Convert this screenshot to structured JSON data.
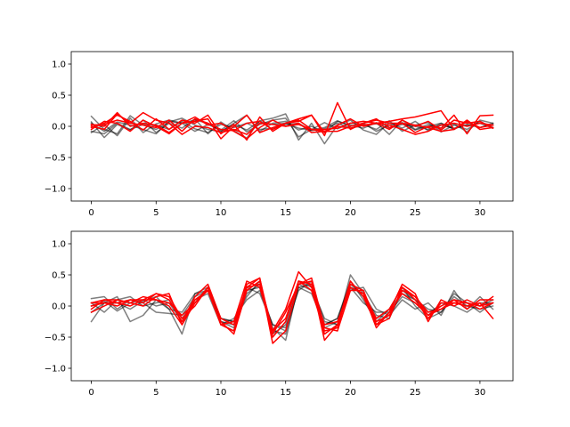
{
  "chart_data": [
    {
      "type": "line",
      "title": "",
      "xlabel": "",
      "ylabel": "",
      "xlim": [
        -1.55,
        32.55
      ],
      "ylim": [
        -1.2,
        1.2
      ],
      "xticks": [
        0,
        5,
        10,
        15,
        20,
        25,
        30
      ],
      "xtick_labels": [
        "0",
        "5",
        "10",
        "15",
        "20",
        "25",
        "30"
      ],
      "yticks": [
        1.0,
        0.5,
        0.0,
        -0.5,
        -1.0
      ],
      "ytick_labels": [
        "1.0",
        "0.5",
        "0.0",
        "−0.5",
        "−1.0"
      ],
      "grid": false,
      "legend": "none",
      "x": [
        0,
        1,
        2,
        3,
        4,
        5,
        6,
        7,
        8,
        9,
        10,
        11,
        12,
        13,
        14,
        15,
        16,
        17,
        18,
        19,
        20,
        21,
        22,
        23,
        24,
        25,
        26,
        27,
        28,
        29,
        30,
        31
      ],
      "series": [
        {
          "color": "#000000",
          "alpha": 0.5,
          "values": [
            0.16,
            -0.05,
            -0.12,
            0.17,
            0.02,
            -0.05,
            0.07,
            0.13,
            0.02,
            -0.05,
            -0.09,
            0.05,
            0.18,
            -0.08,
            0.05,
            0.08,
            -0.06,
            0.0,
            -0.1,
            0.08,
            0.02,
            -0.03,
            0.06,
            -0.13,
            0.1,
            -0.05,
            0.03,
            -0.03,
            0.04,
            -0.09,
            0.1,
            0.05
          ]
        },
        {
          "color": "#000000",
          "alpha": 0.5,
          "values": [
            0.07,
            -0.18,
            0.03,
            -0.06,
            0.1,
            -0.1,
            0.05,
            -0.03,
            0.12,
            -0.12,
            0.07,
            -0.07,
            -0.19,
            0.09,
            0.13,
            0.2,
            -0.22,
            0.05,
            -0.28,
            0.02,
            0.1,
            -0.06,
            -0.13,
            0.06,
            -0.03,
            0.08,
            -0.07,
            0.05,
            -0.05,
            0.07,
            -0.02,
            0.03
          ]
        },
        {
          "color": "#000000",
          "alpha": 0.5,
          "values": [
            -0.1,
            0.03,
            -0.15,
            0.13,
            -0.1,
            0.04,
            0.1,
            0.05,
            -0.08,
            0.03,
            -0.06,
            0.09,
            -0.09,
            0.03,
            0.1,
            0.13,
            -0.17,
            -0.05,
            0.06,
            -0.04,
            0.05,
            0.03,
            -0.05,
            0.09,
            -0.08,
            0.02,
            0.06,
            -0.09,
            0.02,
            -0.05,
            0.08,
            -0.02
          ]
        },
        {
          "color": "#000000",
          "alpha": 0.5,
          "values": [
            0.05,
            -0.08,
            0.07,
            0.02,
            -0.05,
            -0.12,
            0.08,
            0.05,
            0.1,
            0.05,
            -0.08,
            0.03,
            -0.06,
            0.08,
            0.03,
            0.05,
            -0.03,
            -0.06,
            -0.02,
            0.09,
            0.0,
            0.05,
            -0.08,
            0.02,
            0.06,
            -0.06,
            0.0,
            0.05,
            -0.04,
            0.03,
            -0.02,
            0.05
          ]
        },
        {
          "color": "#000000",
          "alpha": 0.5,
          "values": [
            -0.08,
            -0.12,
            0.05,
            -0.05,
            0.03,
            0.02,
            -0.05,
            0.08,
            -0.04,
            -0.1,
            0.03,
            -0.02,
            0.05,
            -0.05,
            -0.03,
            0.03,
            0.05,
            -0.07,
            -0.04,
            0.05,
            -0.03,
            0.02,
            0.04,
            -0.03,
            0.03,
            0.0,
            -0.05,
            0.02,
            -0.03,
            0.02,
            0.05,
            -0.03
          ]
        },
        {
          "color": "#ff0000",
          "alpha": 1.0,
          "values": [
            0.03,
            0.0,
            0.22,
            0.0,
            0.05,
            0.02,
            -0.1,
            0.05,
            0.08,
            0.12,
            -0.2,
            0.0,
            0.18,
            -0.1,
            -0.02,
            0.05,
            0.12,
            0.18,
            -0.15,
            0.38,
            -0.05,
            0.05,
            0.1,
            0.05,
            0.05,
            -0.1,
            0.0,
            -0.03,
            0.18,
            -0.12,
            0.17,
            0.18
          ]
        },
        {
          "color": "#ff0000",
          "alpha": 1.0,
          "values": [
            -0.02,
            0.05,
            0.18,
            0.08,
            -0.06,
            0.12,
            -0.05,
            0.1,
            0.05,
            0.18,
            -0.12,
            0.03,
            -0.22,
            0.15,
            -0.08,
            0.05,
            0.08,
            0.18,
            -0.1,
            0.02,
            0.12,
            0.0,
            0.05,
            0.08,
            0.12,
            0.15,
            0.2,
            0.25,
            -0.05,
            0.1,
            -0.05,
            -0.02
          ]
        },
        {
          "color": "#ff0000",
          "alpha": 1.0,
          "values": [
            0.0,
            -0.05,
            0.2,
            0.05,
            0.02,
            -0.02,
            0.1,
            -0.08,
            0.12,
            0.05,
            -0.05,
            -0.07,
            0.05,
            0.08,
            -0.05,
            0.05,
            0.1,
            -0.05,
            -0.05,
            -0.03,
            0.05,
            0.08,
            0.05,
            0.02,
            -0.05,
            -0.13,
            -0.08,
            0.02,
            0.05,
            0.0,
            0.05,
            0.02
          ]
        },
        {
          "color": "#ff0000",
          "alpha": 1.0,
          "values": [
            0.02,
            0.03,
            0.1,
            0.05,
            0.22,
            0.1,
            0.05,
            -0.13,
            0.0,
            -0.02,
            -0.1,
            -0.05,
            -0.13,
            0.05,
            0.03,
            0.0,
            0.03,
            -0.05,
            -0.08,
            0.0,
            -0.03,
            0.02,
            0.05,
            -0.05,
            0.1,
            0.0,
            0.08,
            -0.06,
            0.1,
            0.05,
            0.08,
            -0.03
          ]
        },
        {
          "color": "#ff0000",
          "alpha": 1.0,
          "values": [
            -0.05,
            0.08,
            0.05,
            -0.08,
            0.1,
            0.0,
            -0.12,
            0.05,
            0.15,
            0.02,
            0.05,
            -0.08,
            -0.2,
            -0.02,
            0.1,
            0.0,
            0.05,
            -0.1,
            -0.08,
            -0.08,
            0.0,
            0.05,
            0.12,
            -0.02,
            0.05,
            0.02,
            -0.02,
            -0.08,
            -0.05,
            0.08,
            -0.02,
            0.02
          ]
        }
      ]
    },
    {
      "type": "line",
      "title": "",
      "xlabel": "",
      "ylabel": "",
      "xlim": [
        -1.55,
        32.55
      ],
      "ylim": [
        -1.2,
        1.2
      ],
      "xticks": [
        0,
        5,
        10,
        15,
        20,
        25,
        30
      ],
      "xtick_labels": [
        "0",
        "5",
        "10",
        "15",
        "20",
        "25",
        "30"
      ],
      "yticks": [
        1.0,
        0.5,
        0.0,
        -0.5,
        -1.0
      ],
      "ytick_labels": [
        "1.0",
        "0.5",
        "0.0",
        "−0.5",
        "−1.0"
      ],
      "grid": false,
      "legend": "none",
      "x": [
        0,
        1,
        2,
        3,
        4,
        5,
        6,
        7,
        8,
        9,
        10,
        11,
        12,
        13,
        14,
        15,
        16,
        17,
        18,
        19,
        20,
        21,
        22,
        23,
        24,
        25,
        26,
        27,
        28,
        29,
        30,
        31
      ],
      "series": [
        {
          "color": "#000000",
          "alpha": 0.5,
          "values": [
            -0.25,
            0.05,
            0.15,
            -0.25,
            -0.15,
            0.1,
            -0.05,
            -0.45,
            0.2,
            0.3,
            -0.25,
            -0.3,
            0.2,
            0.35,
            -0.35,
            -0.55,
            0.35,
            0.25,
            -0.3,
            -0.2,
            0.4,
            0.1,
            -0.25,
            -0.05,
            0.3,
            0.0,
            -0.2,
            -0.1,
            0.2,
            0.05,
            -0.1,
            0.05
          ]
        },
        {
          "color": "#000000",
          "alpha": 0.5,
          "values": [
            0.12,
            0.15,
            -0.05,
            0.1,
            0.05,
            -0.1,
            -0.12,
            -0.15,
            0.15,
            0.25,
            -0.2,
            -0.25,
            0.25,
            0.3,
            -0.4,
            -0.45,
            0.3,
            0.35,
            -0.25,
            -0.3,
            0.5,
            0.2,
            -0.15,
            -0.2,
            0.25,
            0.1,
            -0.1,
            0.0,
            0.1,
            0.05,
            0.0,
            0.1
          ]
        },
        {
          "color": "#000000",
          "alpha": 0.5,
          "values": [
            0.05,
            -0.1,
            0.1,
            0.15,
            0.0,
            0.05,
            0.1,
            -0.2,
            0.1,
            0.2,
            -0.3,
            -0.2,
            0.1,
            0.25,
            -0.3,
            -0.35,
            0.25,
            0.4,
            -0.35,
            -0.25,
            0.25,
            0.3,
            -0.05,
            -0.15,
            0.1,
            -0.05,
            0.05,
            -0.15,
            0.25,
            -0.05,
            0.15,
            -0.05
          ]
        },
        {
          "color": "#000000",
          "alpha": 0.5,
          "values": [
            -0.1,
            0.05,
            0.05,
            -0.05,
            0.08,
            0.15,
            -0.05,
            -0.1,
            0.2,
            0.25,
            -0.25,
            -0.35,
            0.3,
            0.2,
            -0.3,
            -0.4,
            0.4,
            0.3,
            -0.2,
            -0.3,
            0.3,
            0.05,
            -0.1,
            -0.1,
            0.15,
            0.05,
            -0.15,
            0.05,
            0.0,
            -0.1,
            0.05,
            0.05
          ]
        },
        {
          "color": "#000000",
          "alpha": 0.5,
          "values": [
            0.0,
            0.08,
            -0.08,
            0.05,
            0.1,
            0.0,
            0.05,
            -0.25,
            0.05,
            0.3,
            -0.2,
            -0.25,
            0.15,
            0.4,
            -0.45,
            -0.3,
            0.3,
            0.2,
            -0.3,
            -0.2,
            0.35,
            0.15,
            -0.2,
            -0.05,
            0.2,
            0.1,
            -0.05,
            -0.1,
            0.15,
            0.0,
            -0.05,
            0.0
          ]
        },
        {
          "color": "#ff0000",
          "alpha": 1.0,
          "values": [
            -0.05,
            0.1,
            0.05,
            0.0,
            0.1,
            0.2,
            0.15,
            -0.2,
            0.0,
            0.3,
            -0.3,
            -0.4,
            0.35,
            0.45,
            -0.6,
            -0.4,
            0.35,
            0.4,
            -0.55,
            -0.3,
            0.3,
            0.2,
            -0.35,
            -0.1,
            0.35,
            0.2,
            -0.25,
            0.1,
            0.0,
            0.1,
            0.0,
            0.15
          ]
        },
        {
          "color": "#ff0000",
          "alpha": 1.0,
          "values": [
            0.05,
            0.1,
            0.1,
            0.05,
            0.0,
            0.15,
            0.2,
            -0.3,
            0.1,
            0.25,
            -0.3,
            -0.25,
            0.4,
            0.3,
            -0.4,
            -0.2,
            0.4,
            0.25,
            -0.4,
            -0.35,
            0.35,
            0.25,
            -0.3,
            -0.2,
            0.3,
            0.15,
            -0.1,
            -0.05,
            0.05,
            0.0,
            0.05,
            -0.2
          ]
        },
        {
          "color": "#ff0000",
          "alpha": 1.0,
          "values": [
            0.0,
            0.05,
            0.05,
            0.1,
            0.05,
            0.2,
            0.1,
            -0.25,
            0.15,
            0.35,
            -0.2,
            -0.3,
            0.3,
            0.45,
            -0.45,
            -0.1,
            0.35,
            0.45,
            -0.35,
            -0.4,
            0.25,
            0.25,
            -0.25,
            -0.15,
            0.25,
            0.15,
            -0.15,
            -0.05,
            0.1,
            -0.05,
            0.1,
            0.1
          ]
        },
        {
          "color": "#ff0000",
          "alpha": 1.0,
          "values": [
            -0.1,
            0.0,
            0.1,
            0.05,
            0.15,
            0.1,
            0.05,
            -0.15,
            0.05,
            0.25,
            -0.25,
            -0.45,
            0.25,
            0.4,
            -0.4,
            -0.05,
            0.55,
            0.3,
            -0.3,
            -0.25,
            0.3,
            0.2,
            -0.2,
            -0.05,
            0.3,
            0.1,
            -0.2,
            0.05,
            0.05,
            0.05,
            -0.05,
            0.05
          ]
        },
        {
          "color": "#ff0000",
          "alpha": 1.0,
          "values": [
            0.05,
            0.05,
            0.0,
            0.1,
            0.1,
            0.1,
            0.0,
            -0.3,
            0.05,
            0.3,
            -0.3,
            -0.4,
            0.3,
            0.35,
            -0.5,
            -0.25,
            0.4,
            0.35,
            -0.45,
            -0.3,
            0.4,
            0.15,
            -0.3,
            -0.1,
            0.2,
            0.05,
            -0.15,
            0.0,
            0.1,
            0.05,
            0.0,
            0.05
          ]
        }
      ]
    }
  ]
}
